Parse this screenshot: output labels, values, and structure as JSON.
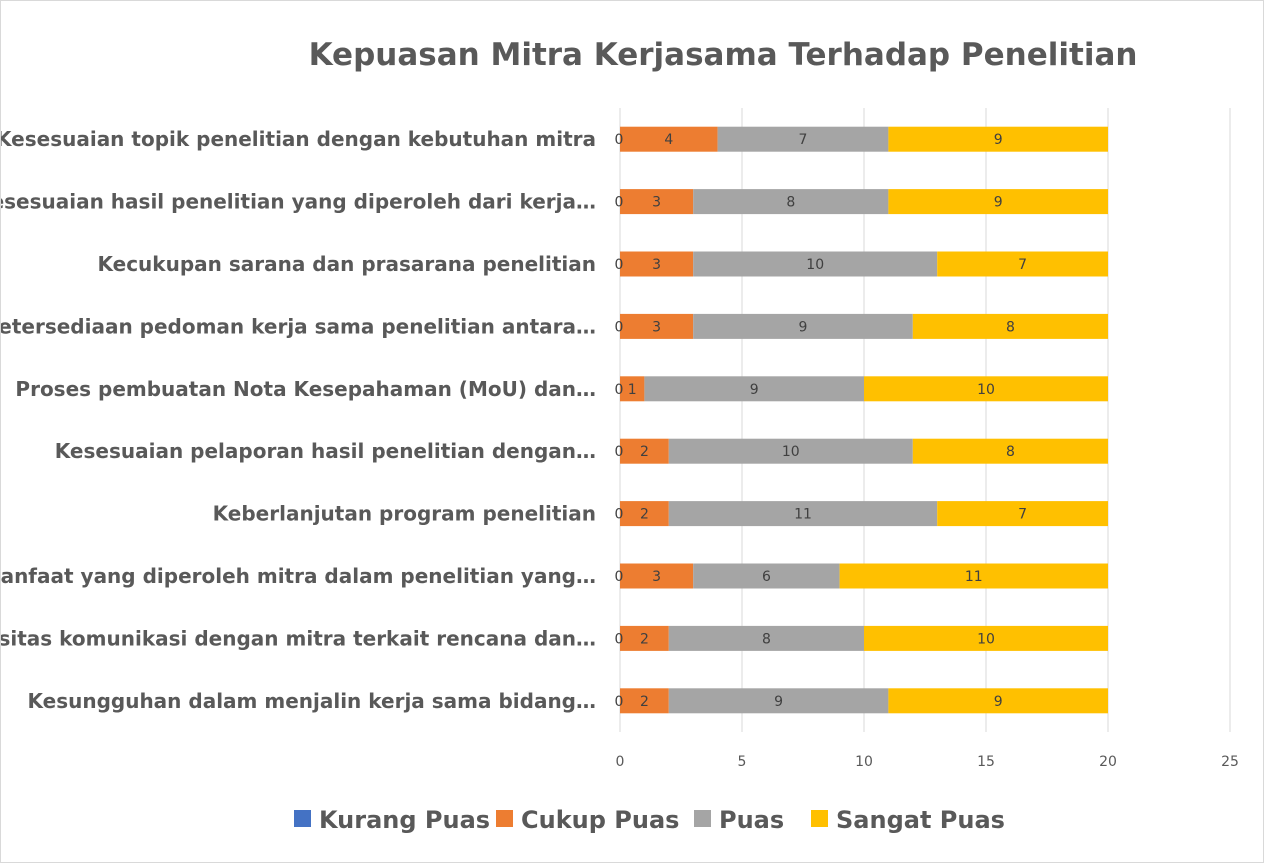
{
  "chart_data": {
    "type": "bar",
    "orientation": "horizontal",
    "stacked": true,
    "title": "Kepuasan Mitra Kerjasama Terhadap Penelitian",
    "categories": [
      "Kesesuaian topik penelitian dengan kebutuhan mitra",
      "Kesesuaian hasil penelitian yang diperoleh dari kerja…",
      "Kecukupan sarana dan prasarana penelitian",
      "Ketersediaan pedoman kerja sama penelitian antara…",
      "Proses pembuatan Nota Kesepahaman (MoU) dan…",
      "Kesesuaian pelaporan hasil penelitian dengan…",
      "Keberlanjutan program penelitian",
      "Manfaat yang diperoleh mitra dalam penelitian yang…",
      "Intensitas komunikasi dengan mitra terkait rencana dan…",
      "Kesungguhan dalam menjalin kerja sama bidang…"
    ],
    "series": [
      {
        "name": "Kurang Puas",
        "color": "#4472C4",
        "values": [
          0,
          0,
          0,
          0,
          0,
          0,
          0,
          0,
          0,
          0
        ]
      },
      {
        "name": "Cukup Puas",
        "color": "#ED7D31",
        "values": [
          4,
          3,
          3,
          3,
          1,
          2,
          2,
          3,
          2,
          2
        ]
      },
      {
        "name": "Puas",
        "color": "#A5A5A5",
        "values": [
          7,
          8,
          10,
          9,
          9,
          10,
          11,
          6,
          8,
          9
        ]
      },
      {
        "name": "Sangat Puas",
        "color": "#FFC000",
        "values": [
          9,
          9,
          7,
          8,
          10,
          8,
          7,
          11,
          10,
          9
        ]
      }
    ],
    "xlim": [
      0,
      25
    ],
    "xticks": [
      "0",
      "5",
      "10",
      "15",
      "20",
      "25"
    ],
    "grid": true,
    "legend_position": "bottom"
  }
}
